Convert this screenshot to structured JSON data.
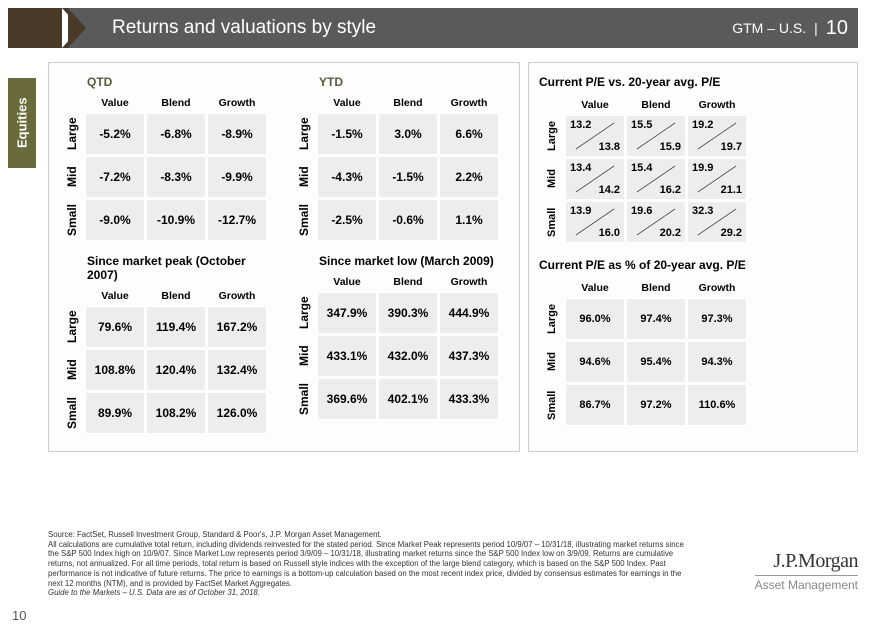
{
  "header": {
    "title": "Returns and valuations by style",
    "gtm": "GTM – U.S.",
    "page": "10"
  },
  "sidebar": {
    "label": "Equities"
  },
  "colors": {
    "header_bg": "#5a5a5a",
    "header_brown": "#4a3a2a",
    "sidebar_bg": "#6a6a3a",
    "cell_bg": "#ededed",
    "title_olive": "#5a5a3a"
  },
  "style_labels": {
    "cols": [
      "Value",
      "Blend",
      "Growth"
    ],
    "rows": [
      "Large",
      "Mid",
      "Small"
    ]
  },
  "tables": {
    "qtd": {
      "title": "QTD",
      "rows": [
        [
          "-5.2%",
          "-6.8%",
          "-8.9%"
        ],
        [
          "-7.2%",
          "-8.3%",
          "-9.9%"
        ],
        [
          "-9.0%",
          "-10.9%",
          "-12.7%"
        ]
      ]
    },
    "ytd": {
      "title": "YTD",
      "rows": [
        [
          "-1.5%",
          "3.0%",
          "6.6%"
        ],
        [
          "-4.3%",
          "-1.5%",
          "2.2%"
        ],
        [
          "-2.5%",
          "-0.6%",
          "1.1%"
        ]
      ]
    },
    "since_peak": {
      "title": "Since market peak (October 2007)",
      "rows": [
        [
          "79.6%",
          "119.4%",
          "167.2%"
        ],
        [
          "108.8%",
          "120.4%",
          "132.4%"
        ],
        [
          "89.9%",
          "108.2%",
          "126.0%"
        ]
      ]
    },
    "since_low": {
      "title": "Since market low (March 2009)",
      "rows": [
        [
          "347.9%",
          "390.3%",
          "444.9%"
        ],
        [
          "433.1%",
          "432.0%",
          "437.3%"
        ],
        [
          "369.6%",
          "402.1%",
          "433.3%"
        ]
      ]
    },
    "pe_vs_avg": {
      "title": "Current P/E vs. 20-year avg. P/E",
      "rows": [
        [
          {
            "cur": "13.2",
            "avg": "13.8"
          },
          {
            "cur": "15.5",
            "avg": "15.9"
          },
          {
            "cur": "19.2",
            "avg": "19.7"
          }
        ],
        [
          {
            "cur": "13.4",
            "avg": "14.2"
          },
          {
            "cur": "15.4",
            "avg": "16.2"
          },
          {
            "cur": "19.9",
            "avg": "21.1"
          }
        ],
        [
          {
            "cur": "13.9",
            "avg": "16.0"
          },
          {
            "cur": "19.6",
            "avg": "20.2"
          },
          {
            "cur": "32.3",
            "avg": "29.2"
          }
        ]
      ]
    },
    "pe_pct": {
      "title": "Current P/E as % of 20-year avg. P/E",
      "rows": [
        [
          "96.0%",
          "97.4%",
          "97.3%"
        ],
        [
          "94.6%",
          "95.4%",
          "94.3%"
        ],
        [
          "86.7%",
          "97.2%",
          "110.6%"
        ]
      ]
    }
  },
  "footer": {
    "source": "Source: FactSet, Russell Investment Group, Standard & Poor's, J.P. Morgan Asset Management.",
    "body": "All calculations are cumulative total return, including dividends reinvested for the stated period. Since Market Peak represents period 10/9/07 – 10/31/18, illustrating market returns since the S&P 500 Index high on 10/9/07. Since Market Low represents period 3/9/09 – 10/31/18, illustrating market returns since the S&P 500 Index low on 3/9/09. Returns are cumulative returns, not annualized. For all time periods, total return is based on Russell style indices with the exception of the large blend category, which is based on the S&P 500 Index. Past performance is not indicative of future returns. The price to earnings is a bottom-up calculation based on the most recent index price, divided by consensus estimates for earnings in the next 12 months (NTM), and is provided by FactSet Market Aggregates.",
    "guide": "Guide to the Markets – U.S. Data are as of October 31, 2018."
  },
  "logo": {
    "line1": "J.P.Morgan",
    "line2": "Asset Management"
  },
  "corner_page": "10"
}
